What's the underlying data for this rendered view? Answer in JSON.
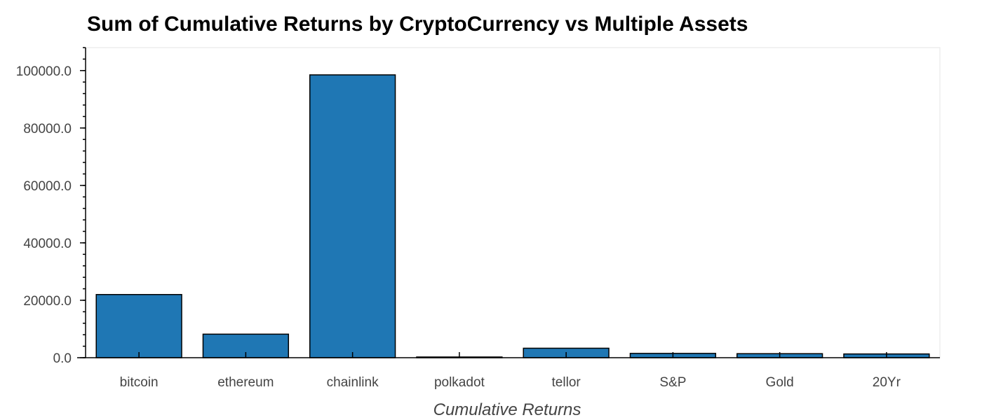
{
  "chart_data": {
    "type": "bar",
    "title": "Sum of Cumulative Returns by CryptoCurrency vs Multiple Assets",
    "xlabel": "Cumulative Returns",
    "ylabel": "",
    "categories": [
      "bitcoin",
      "ethereum",
      "chainlink",
      "polkadot",
      "tellor",
      "S&P",
      "Gold",
      "20Yr"
    ],
    "values": [
      22000,
      8200,
      98500,
      100,
      3300,
      1500,
      1400,
      1300
    ],
    "ylim": [
      0,
      108000
    ],
    "yticks": [
      0,
      20000,
      40000,
      60000,
      80000,
      100000
    ],
    "ytick_labels": [
      "0.0",
      "20000.0",
      "40000.0",
      "60000.0",
      "80000.0",
      "100000.0"
    ],
    "bar_color": "#1f77b4",
    "grid": false,
    "legend": "none"
  }
}
